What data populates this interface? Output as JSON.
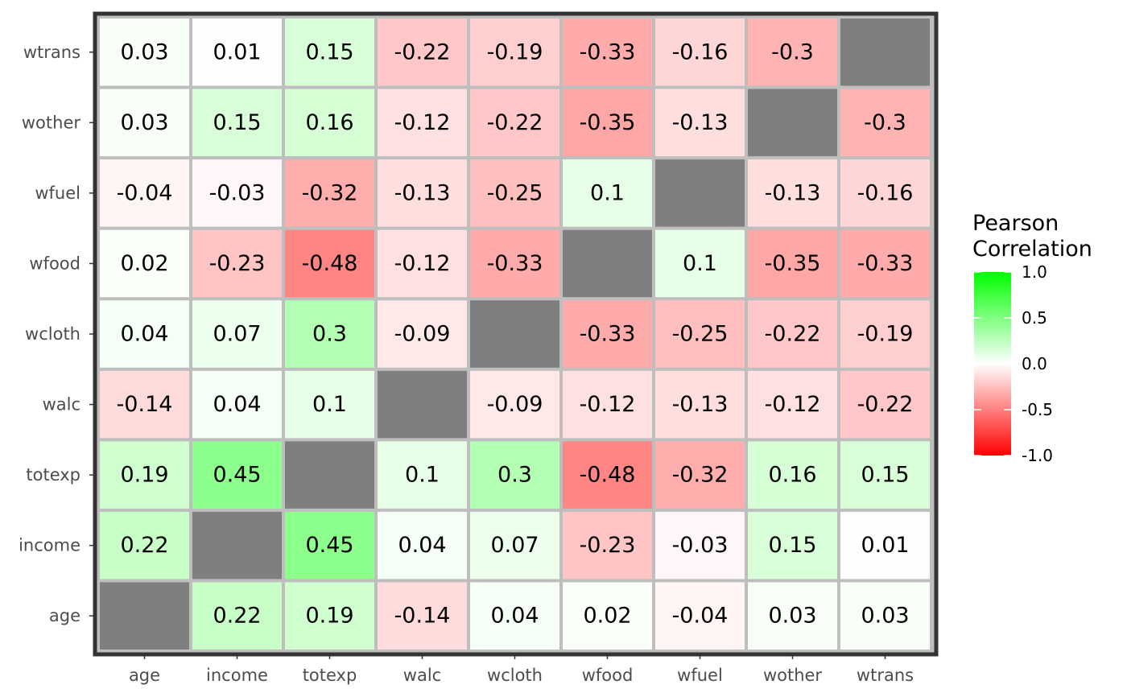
{
  "chart_data": {
    "type": "heatmap",
    "x_categories": [
      "age",
      "income",
      "totexp",
      "walc",
      "wcloth",
      "wfood",
      "wfuel",
      "wother",
      "wtrans"
    ],
    "y_categories": [
      "age",
      "income",
      "totexp",
      "walc",
      "wcloth",
      "wfood",
      "wfuel",
      "wother",
      "wtrans"
    ],
    "values": [
      [
        null,
        0.22,
        0.19,
        -0.14,
        0.04,
        0.02,
        -0.04,
        0.03,
        0.03
      ],
      [
        0.22,
        null,
        0.45,
        0.04,
        0.07,
        -0.23,
        -0.03,
        0.15,
        0.01
      ],
      [
        0.19,
        0.45,
        null,
        0.1,
        0.3,
        -0.48,
        -0.32,
        0.16,
        0.15
      ],
      [
        -0.14,
        0.04,
        0.1,
        null,
        -0.09,
        -0.12,
        -0.13,
        -0.12,
        -0.22
      ],
      [
        0.04,
        0.07,
        0.3,
        -0.09,
        null,
        -0.33,
        -0.25,
        -0.22,
        -0.19
      ],
      [
        0.02,
        -0.23,
        -0.48,
        -0.12,
        -0.33,
        null,
        0.1,
        -0.35,
        -0.33
      ],
      [
        -0.04,
        -0.03,
        -0.32,
        -0.13,
        -0.25,
        0.1,
        null,
        -0.13,
        -0.16
      ],
      [
        0.03,
        0.15,
        0.16,
        -0.12,
        -0.22,
        -0.35,
        -0.13,
        null,
        -0.3
      ],
      [
        0.03,
        0.01,
        0.15,
        -0.22,
        -0.19,
        -0.33,
        -0.16,
        -0.3,
        null
      ]
    ],
    "legend": {
      "title_line1": "Pearson",
      "title_line2": "Correlation",
      "ticks": [
        1.0,
        0.5,
        0.0,
        -0.5,
        -1.0
      ],
      "tick_labels": [
        "1.0",
        "0.5",
        "0.0",
        "-0.5",
        "-1.0"
      ],
      "position": "right"
    },
    "scale": {
      "min": -1,
      "max": 1
    },
    "colors": {
      "low": "#ff0000",
      "mid": "#ffffff",
      "high": "#00ff00",
      "missing": "#7f7f7f",
      "cell_border": "#bebebe",
      "panel_border": "#333333"
    },
    "title": "",
    "xlabel": "",
    "ylabel": ""
  }
}
